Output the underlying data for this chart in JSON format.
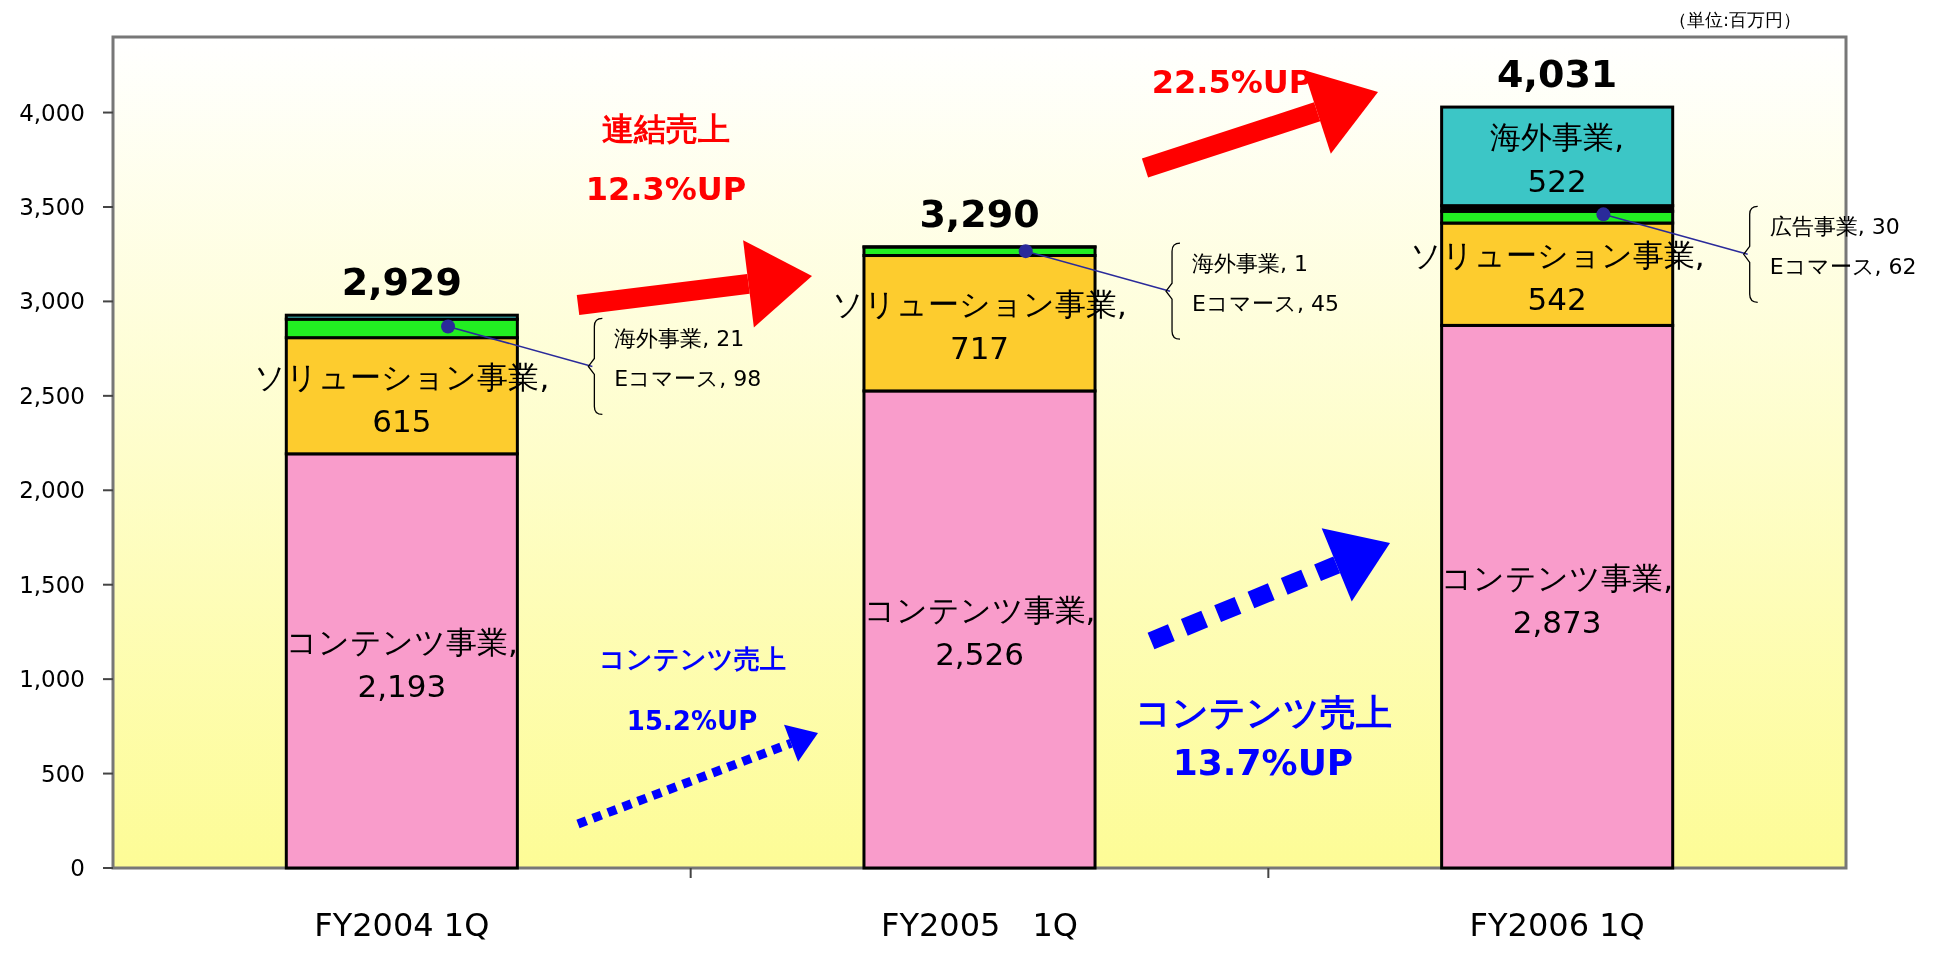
{
  "chart_data": {
    "type": "bar",
    "stacked": true,
    "categories": [
      "FY2004 1Q",
      "FY2005　1Q",
      "FY2006 1Q"
    ],
    "series": [
      {
        "color": "#f99ccb",
        "values": [
          2193,
          2526,
          2873
        ],
        "value_labels": [
          "コンテンツ事業, 2,193",
          "コンテンツ事業, 2,526",
          "コンテンツ事業, 2,873"
        ]
      },
      {
        "color": "#fdcc2e",
        "values": [
          615,
          717,
          542
        ],
        "value_labels": [
          "ソリューション事業, 615",
          "ソリューション事業, 717",
          "ソリューション事業, 542"
        ]
      },
      {
        "color": "#22ee22",
        "values": [
          98,
          45,
          62
        ],
        "value_labels": [
          "Eコマース, 98",
          "Eコマース, 45",
          "Eコマース, 62"
        ]
      },
      {
        "color": "#000000",
        "values": [
          null,
          null,
          30
        ],
        "value_labels": [
          null,
          null,
          "広告事業, 30"
        ]
      },
      {
        "color": "#3cc6c6",
        "values": [
          21,
          1,
          522
        ],
        "value_labels": [
          "海外事業, 21",
          "海外事業, 1",
          "海外事業, 522"
        ]
      }
    ],
    "totals": [
      "2,929",
      "3,290",
      "4,031"
    ],
    "ylim": [
      0,
      4400
    ],
    "yticks": [
      0,
      500,
      {
        "value": 1000,
        "label": "1,000"
      },
      {
        "value": 1500,
        "label": "1,500"
      },
      {
        "value": 2000,
        "label": "2,000"
      },
      {
        "value": 2500,
        "label": "2,500"
      },
      {
        "value": 3000,
        "label": "3,000"
      },
      {
        "value": 3500,
        "label": "3,500"
      },
      {
        "value": 4000,
        "label": "4,000"
      }
    ],
    "annotations": [
      "連結売上",
      "12.3%UP",
      "22.5%UP",
      "コンテンツ売上",
      "15.2%UP",
      "コンテンツ売上",
      "13.7%UP",
      "（単位:百万円）"
    ]
  }
}
